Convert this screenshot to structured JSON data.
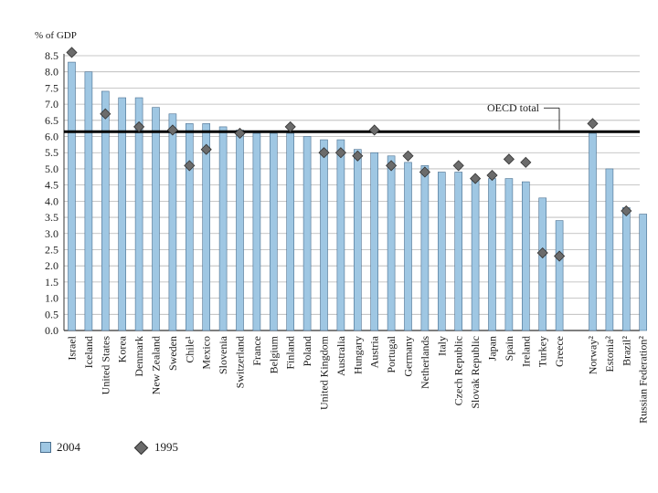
{
  "chart_data": {
    "type": "bar",
    "ylabel": "% of GDP",
    "ylim": [
      0,
      8.5
    ],
    "yticks": [
      "0.0",
      "0.5",
      "1.0",
      "1.5",
      "2.0",
      "2.5",
      "3.0",
      "3.5",
      "4.0",
      "4.5",
      "5.0",
      "5.5",
      "6.0",
      "6.5",
      "7.0",
      "7.5",
      "8.0",
      "8.5"
    ],
    "grid": true,
    "categories": [
      "Israel",
      "Iceland",
      "United States",
      "Korea",
      "Denmark",
      "New Zealand",
      "Sweden",
      "Chile¹",
      "Mexico",
      "Slovenia",
      "Switzerland",
      "France",
      "Belgium",
      "Finland",
      "Poland",
      "United Kingdom",
      "Australia",
      "Hungary",
      "Austria",
      "Portugal",
      "Germany",
      "Netherlands",
      "Italy",
      "Czech Republic",
      "Slovak Republic",
      "Japan",
      "Spain",
      "Ireland",
      "Turkey",
      "Greece",
      "Norway²",
      "Estonia²",
      "Brazil²",
      "Russian Federation²"
    ],
    "series": [
      {
        "name": "2004",
        "values": [
          8.3,
          8.0,
          7.4,
          7.2,
          7.2,
          6.9,
          6.7,
          6.4,
          6.4,
          6.3,
          6.2,
          6.1,
          6.1,
          6.1,
          6.0,
          5.9,
          5.9,
          5.6,
          5.5,
          5.4,
          5.2,
          5.1,
          4.9,
          4.9,
          4.7,
          4.7,
          4.7,
          4.6,
          4.1,
          3.4,
          6.1,
          5.0,
          3.8,
          3.6
        ]
      },
      {
        "name": "1995",
        "values": [
          8.6,
          null,
          6.7,
          null,
          6.3,
          null,
          6.2,
          5.1,
          5.6,
          null,
          6.1,
          null,
          null,
          6.3,
          null,
          5.5,
          5.5,
          5.4,
          6.2,
          5.1,
          5.4,
          4.9,
          null,
          5.1,
          4.7,
          4.8,
          5.3,
          5.2,
          2.4,
          2.3,
          6.4,
          null,
          3.7,
          null
        ]
      }
    ],
    "reference_line": {
      "label": "OECD total",
      "value": 6.15
    },
    "gap_after_index": 29
  },
  "legend": {
    "bar_label": "2004",
    "marker_label": "1995"
  },
  "colors": {
    "bar": "#9fc7e3",
    "bar_stroke": "#4a6f8f",
    "marker": "#6b6b6b",
    "grid": "#b5b5b5",
    "axis": "#333333",
    "reference": "#000000"
  }
}
